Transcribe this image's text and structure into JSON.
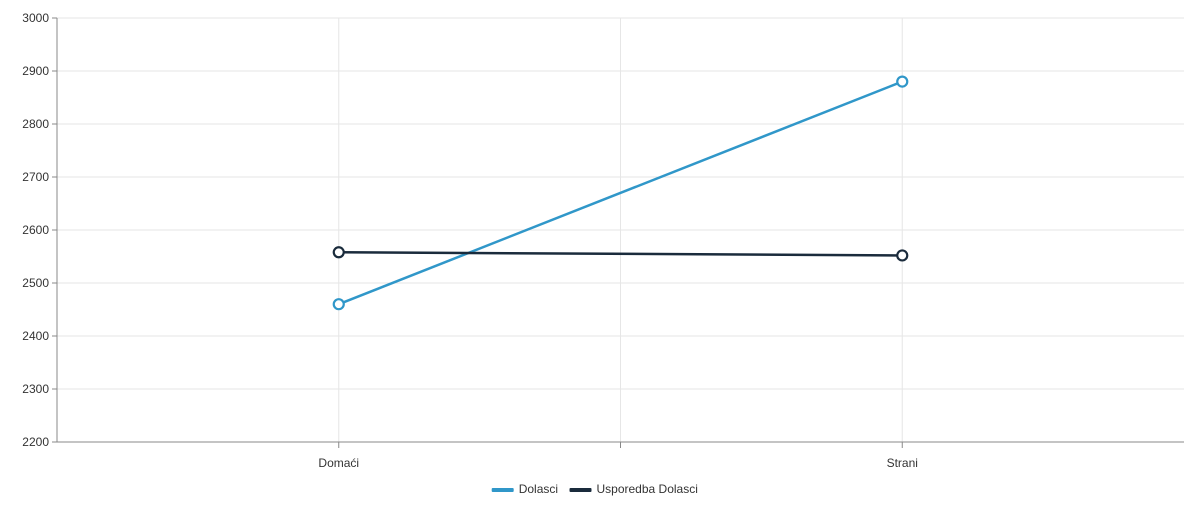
{
  "chart_data": {
    "type": "line",
    "categories": [
      "Domaći",
      "Strani"
    ],
    "series": [
      {
        "name": "Dolasci",
        "values": [
          2460,
          2880
        ],
        "color": "#3097c9"
      },
      {
        "name": "Usporedba Dolasci",
        "values": [
          2558,
          2552
        ],
        "color": "#1a2b3c"
      }
    ],
    "y_ticks": [
      "3000",
      "2900",
      "2800",
      "2700",
      "2600",
      "2500",
      "2400",
      "2300",
      "2200"
    ],
    "ylim": [
      2200,
      3000
    ],
    "grid": true,
    "legend_position": "bottom-center",
    "colors": {
      "grid": "#e6e6e6",
      "axis": "#888888",
      "tick_text": "#333333"
    }
  }
}
